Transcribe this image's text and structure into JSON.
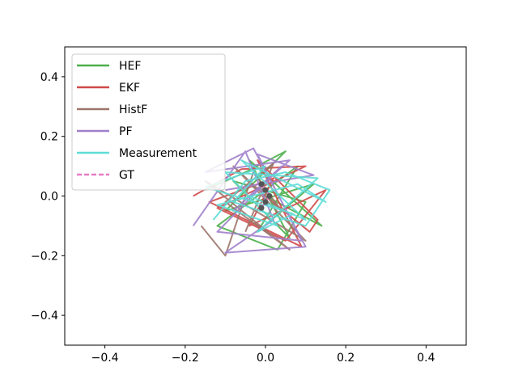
{
  "chart_data": {
    "type": "line",
    "title": "",
    "xlabel": "",
    "ylabel": "",
    "xlim": [
      -0.5,
      0.5
    ],
    "ylim": [
      -0.5,
      0.5
    ],
    "grid": false,
    "legend_position": "upper-left",
    "x_ticks": [
      {
        "value": -0.4,
        "label": "−0.4"
      },
      {
        "value": -0.2,
        "label": "−0.2"
      },
      {
        "value": 0.0,
        "label": "0.0"
      },
      {
        "value": 0.2,
        "label": "0.2"
      },
      {
        "value": 0.4,
        "label": "0.4"
      }
    ],
    "y_ticks": [
      {
        "value": 0.4,
        "label": "0.4"
      },
      {
        "value": 0.2,
        "label": "0.2"
      },
      {
        "value": 0.0,
        "label": "0.0"
      },
      {
        "value": -0.2,
        "label": "−0.2"
      },
      {
        "value": -0.4,
        "label": "−0.4"
      }
    ],
    "series": [
      {
        "name": "HEF",
        "color": "#4daf4a",
        "dash": "solid",
        "x": [
          -0.15,
          -0.05,
          0.05,
          -0.1,
          0.12,
          -0.02,
          0.08,
          -0.12,
          0.03,
          0.1,
          -0.08,
          0.06,
          -0.04,
          0.14,
          0.0
        ],
        "y": [
          0.02,
          0.08,
          0.15,
          -0.05,
          0.04,
          -0.12,
          0.1,
          -0.1,
          -0.18,
          -0.02,
          0.05,
          -0.14,
          0.12,
          -0.1,
          0.0
        ]
      },
      {
        "name": "EKF",
        "color": "#d04a4a",
        "dash": "solid",
        "x": [
          -0.18,
          -0.06,
          0.1,
          -0.12,
          0.05,
          0.15,
          -0.04,
          0.02,
          -0.14,
          0.09,
          -0.02,
          0.13,
          0.11,
          0.0
        ],
        "y": [
          0.0,
          0.09,
          0.1,
          -0.04,
          -0.15,
          0.02,
          -0.1,
          0.06,
          -0.02,
          -0.17,
          0.12,
          -0.08,
          -0.12,
          0.0
        ]
      },
      {
        "name": "HistF",
        "color": "#9c756b",
        "dash": "solid",
        "x": [
          -0.16,
          -0.1,
          -0.03,
          0.04,
          -0.08,
          0.1,
          -0.15,
          0.06,
          -0.1,
          0.02,
          -0.05
        ],
        "y": [
          -0.1,
          -0.2,
          0.08,
          -0.05,
          0.1,
          -0.15,
          0.05,
          -0.18,
          -0.02,
          0.11,
          -0.12
        ]
      },
      {
        "name": "PF",
        "color": "#a07fcb",
        "dash": "solid",
        "x": [
          -0.18,
          -0.05,
          0.02,
          -0.1,
          0.1,
          -0.03,
          -0.15,
          0.06,
          -0.08,
          0.04,
          -0.12,
          0.09,
          -0.02,
          0.12,
          -0.1
        ],
        "y": [
          -0.1,
          0.15,
          -0.08,
          -0.19,
          -0.17,
          0.16,
          0.08,
          0.12,
          -0.05,
          0.1,
          -0.12,
          -0.15,
          0.14,
          0.07,
          0.02
        ]
      },
      {
        "name": "Measurement",
        "color": "#5ddcd6",
        "dash": "solid",
        "x": [
          -0.13,
          -0.05,
          0.05,
          0.16,
          0.1,
          -0.08,
          0.0,
          -0.15,
          0.07,
          -0.02,
          0.13,
          -0.1,
          0.03,
          -0.12,
          0.08,
          0.15,
          -0.06,
          0.1,
          -0.04
        ],
        "y": [
          -0.08,
          0.05,
          0.08,
          0.02,
          -0.1,
          -0.02,
          0.1,
          0.03,
          -0.06,
          -0.12,
          0.06,
          0.08,
          -0.1,
          -0.03,
          0.04,
          -0.02,
          0.12,
          -0.08,
          0.0
        ]
      },
      {
        "name": "GT",
        "color": "#e87bc3",
        "dash": "dashed",
        "x": [
          -0.01,
          0.0,
          0.01,
          0.0,
          -0.01
        ],
        "y": [
          0.04,
          0.02,
          0.0,
          -0.02,
          -0.04
        ]
      }
    ]
  }
}
